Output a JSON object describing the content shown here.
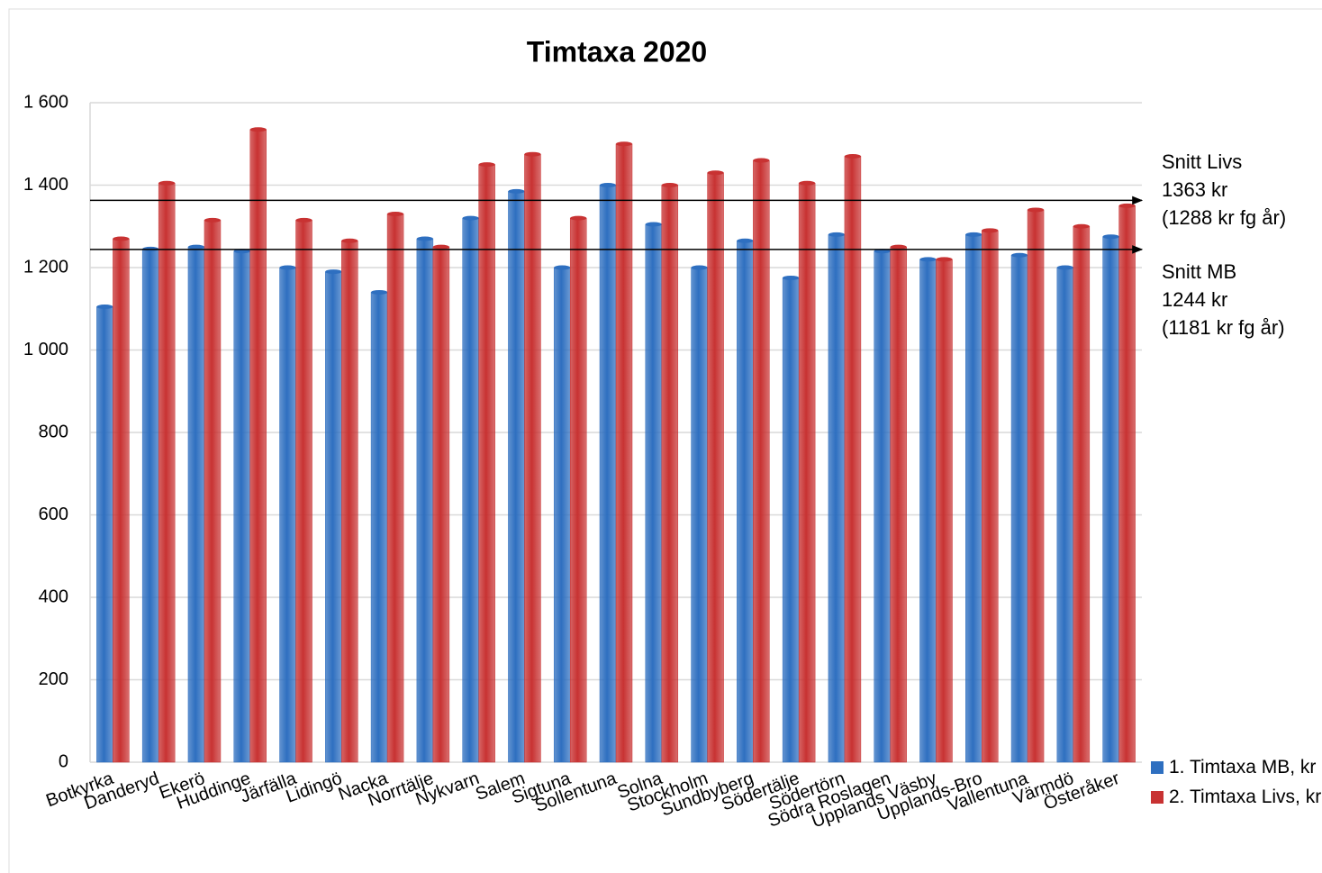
{
  "chart_data": {
    "type": "bar",
    "title": "Timtaxa 2020",
    "categories": [
      "Botkyrka",
      "Danderyd",
      "Ekerö",
      "Huddinge",
      "Järfälla",
      "Lidingö",
      "Nacka",
      "Norrtälje",
      "Nykvarn",
      "Salem",
      "Sigtuna",
      "Sollentuna",
      "Solna",
      "Stockholm",
      "Sundbyberg",
      "Södertälje",
      "Södertörn",
      "Södra Roslagen",
      "Upplands Väsby",
      "Upplands-Bro",
      "Vallentuna",
      "Värmdö",
      "Österåker"
    ],
    "series": [
      {
        "name": "1. Timtaxa MB, kr",
        "color": "#2e6fc0",
        "values": [
          1105,
          1245,
          1250,
          1240,
          1200,
          1190,
          1140,
          1270,
          1320,
          1385,
          1200,
          1400,
          1305,
          1200,
          1265,
          1175,
          1280,
          1240,
          1220,
          1280,
          1230,
          1200,
          1275
        ]
      },
      {
        "name": "2. Timtaxa Livs, kr",
        "color": "#c83232",
        "values": [
          1270,
          1405,
          1315,
          1535,
          1315,
          1265,
          1330,
          1250,
          1450,
          1475,
          1320,
          1500,
          1400,
          1430,
          1460,
          1405,
          1470,
          1250,
          1220,
          1290,
          1340,
          1300,
          1350
        ]
      }
    ],
    "reference_lines": [
      {
        "name": "Snitt Livs",
        "value": 1363,
        "value_label": "1363 kr",
        "note": "(1288 kr fg år)"
      },
      {
        "name": "Snitt MB",
        "value": 1244,
        "value_label": "1244 kr",
        "note": "(1181 kr fg år)"
      }
    ],
    "ylim": [
      0,
      1600
    ],
    "yticks": [
      0,
      200,
      400,
      600,
      800,
      {
        "value": 1000,
        "label": "1 000"
      },
      {
        "value": 1200,
        "label": "1 200"
      },
      {
        "value": 1400,
        "label": "1 400"
      },
      {
        "value": 1600,
        "label": "1 600"
      }
    ],
    "grid": true,
    "legend": "bottom-right"
  }
}
